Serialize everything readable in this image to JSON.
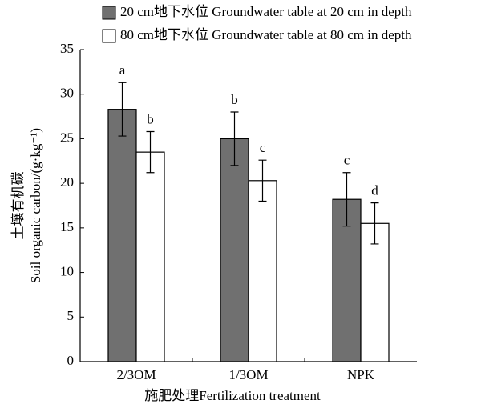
{
  "chart_data": {
    "type": "bar",
    "y_label_lines": [
      "土壤有机碳",
      "Soil organic carbon/(g·kg⁻¹)"
    ],
    "x_label": "施肥处理Fertilization treatment",
    "categories": [
      "2/3OM",
      "1/3OM",
      "NPK"
    ],
    "series": [
      {
        "name": "20 cm地下水位  Groundwater table at 20 cm in depth",
        "color": "#707070",
        "values": [
          28.3,
          25.0,
          18.2
        ],
        "errors": [
          3.0,
          3.0,
          3.0
        ],
        "letters": [
          "a",
          "b",
          "c"
        ]
      },
      {
        "name": "80 cm地下水位  Groundwater table at 80 cm in depth",
        "color": "#ffffff",
        "values": [
          23.5,
          20.3,
          15.5
        ],
        "errors": [
          2.3,
          2.3,
          2.3
        ],
        "letters": [
          "b",
          "c",
          "d"
        ]
      }
    ],
    "ylim": [
      0,
      35
    ],
    "yticks": [
      0,
      5,
      10,
      15,
      20,
      25,
      30,
      35
    ],
    "grid": false
  }
}
